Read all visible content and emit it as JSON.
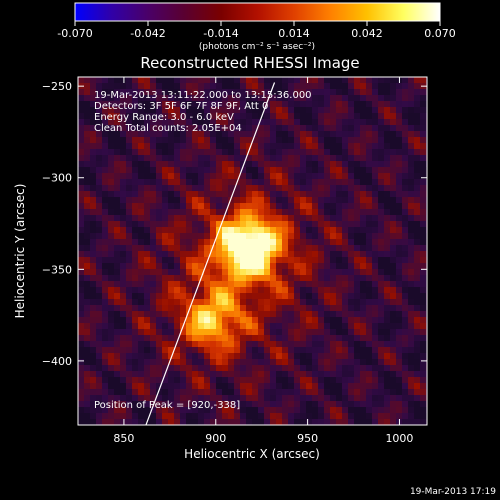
{
  "colorbar": {
    "ticks": [
      "-0.070",
      "-0.042",
      "-0.014",
      "0.014",
      "0.042",
      "0.070"
    ],
    "unit_label": "(photons cm⁻² s⁻¹ asec⁻²)",
    "stops": [
      "#0000ff",
      "#3000a8",
      "#4a0068",
      "#5a0030",
      "#7a0000",
      "#b21000",
      "#e04000",
      "#ff8000",
      "#ffc000",
      "#ffff60",
      "#ffffff"
    ]
  },
  "title": "Reconstructed RHESSI Image",
  "annotations": {
    "time": "19-Mar-2013 13:11:22.000 to 13:15:36.000",
    "detectors": "Detectors: 3F 5F 6F 7F 8F 9F, Att 0",
    "energy": "Energy Range: 3.0 - 6.0 keV",
    "clean": "Clean     Total counts: 2.05E+04",
    "peak": "Position of Peak = [920,-338]"
  },
  "footer_timestamp": "19-Mar-2013 17:19",
  "chart_data": {
    "type": "heatmap",
    "title": "Reconstructed RHESSI Image",
    "xlabel": "Heliocentric X (arcsec)",
    "ylabel": "Heliocentric Y (arcsec)",
    "xlim": [
      825,
      1015
    ],
    "ylim": [
      -435,
      -245
    ],
    "xticks": [
      850,
      900,
      950,
      1000
    ],
    "yticks": [
      -250,
      -300,
      -350,
      -400
    ],
    "colorbar_range": [
      -0.07,
      0.07
    ],
    "peak": [
      920,
      -338
    ],
    "sources": [
      {
        "x": 918,
        "y": -338,
        "relative_intensity": 1.0
      },
      {
        "x": 898,
        "y": -378,
        "relative_intensity": 0.55
      }
    ],
    "limb_line": [
      [
        862,
        -435
      ],
      [
        932,
        -248
      ]
    ],
    "grid": false
  }
}
